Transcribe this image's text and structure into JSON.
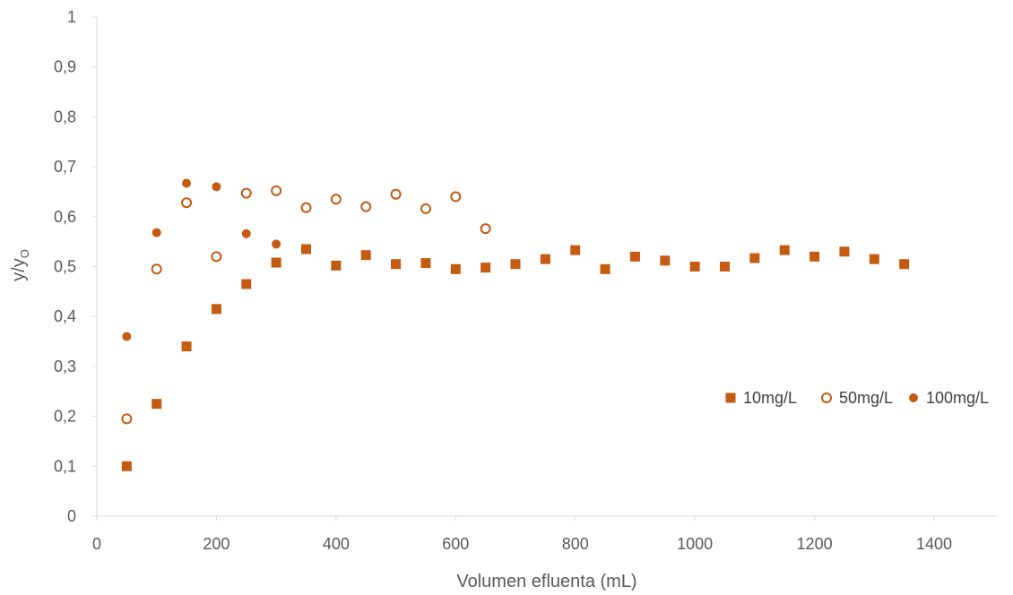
{
  "chart_data": {
    "type": "scatter",
    "title": "",
    "xlabel": "Volumen efluenta (mL)",
    "ylabel_main": "y/y",
    "ylabel_sub": "O",
    "xlim": [
      0,
      1400
    ],
    "ylim": [
      0,
      1
    ],
    "x_ticks": [
      0,
      200,
      400,
      600,
      800,
      1000,
      1200,
      1400
    ],
    "x_tick_labels": [
      "0",
      "200",
      "400",
      "600",
      "800",
      "1000",
      "1200",
      "1400"
    ],
    "y_ticks": [
      0,
      0.1,
      0.2,
      0.3,
      0.4,
      0.5,
      0.6,
      0.7,
      0.8,
      0.9,
      1
    ],
    "y_tick_labels": [
      "0",
      "0,1",
      "0,2",
      "0,3",
      "0,4",
      "0,5",
      "0,6",
      "0,7",
      "0,8",
      "0,9",
      "1"
    ],
    "grid": false,
    "legend_position": "right",
    "series": [
      {
        "name": "10mg/L",
        "marker": "square-filled",
        "color": "#C55A11",
        "x": [
          50,
          100,
          150,
          200,
          250,
          300,
          350,
          400,
          450,
          500,
          550,
          600,
          650,
          700,
          750,
          800,
          850,
          900,
          950,
          1000,
          1050,
          1100,
          1150,
          1200,
          1250,
          1300,
          1350
        ],
        "y": [
          0.1,
          0.225,
          0.34,
          0.415,
          0.465,
          0.508,
          0.535,
          0.502,
          0.523,
          0.505,
          0.507,
          0.495,
          0.498,
          0.505,
          0.515,
          0.533,
          0.495,
          0.52,
          0.512,
          0.5,
          0.5,
          0.517,
          0.533,
          0.52,
          0.53,
          0.515,
          0.505
        ]
      },
      {
        "name": "50mg/L",
        "marker": "circle-open",
        "color": "#C55A11",
        "x": [
          50,
          100,
          150,
          200,
          250,
          300,
          350,
          400,
          450,
          500,
          550,
          600,
          650
        ],
        "y": [
          0.195,
          0.495,
          0.628,
          0.52,
          0.647,
          0.652,
          0.618,
          0.635,
          0.62,
          0.645,
          0.616,
          0.64,
          0.576
        ]
      },
      {
        "name": "100mg/L",
        "marker": "circle-filled",
        "color": "#C55A11",
        "x": [
          50,
          100,
          150,
          200,
          250,
          300
        ],
        "y": [
          0.36,
          0.568,
          0.667,
          0.66,
          0.566,
          0.545
        ]
      }
    ]
  }
}
